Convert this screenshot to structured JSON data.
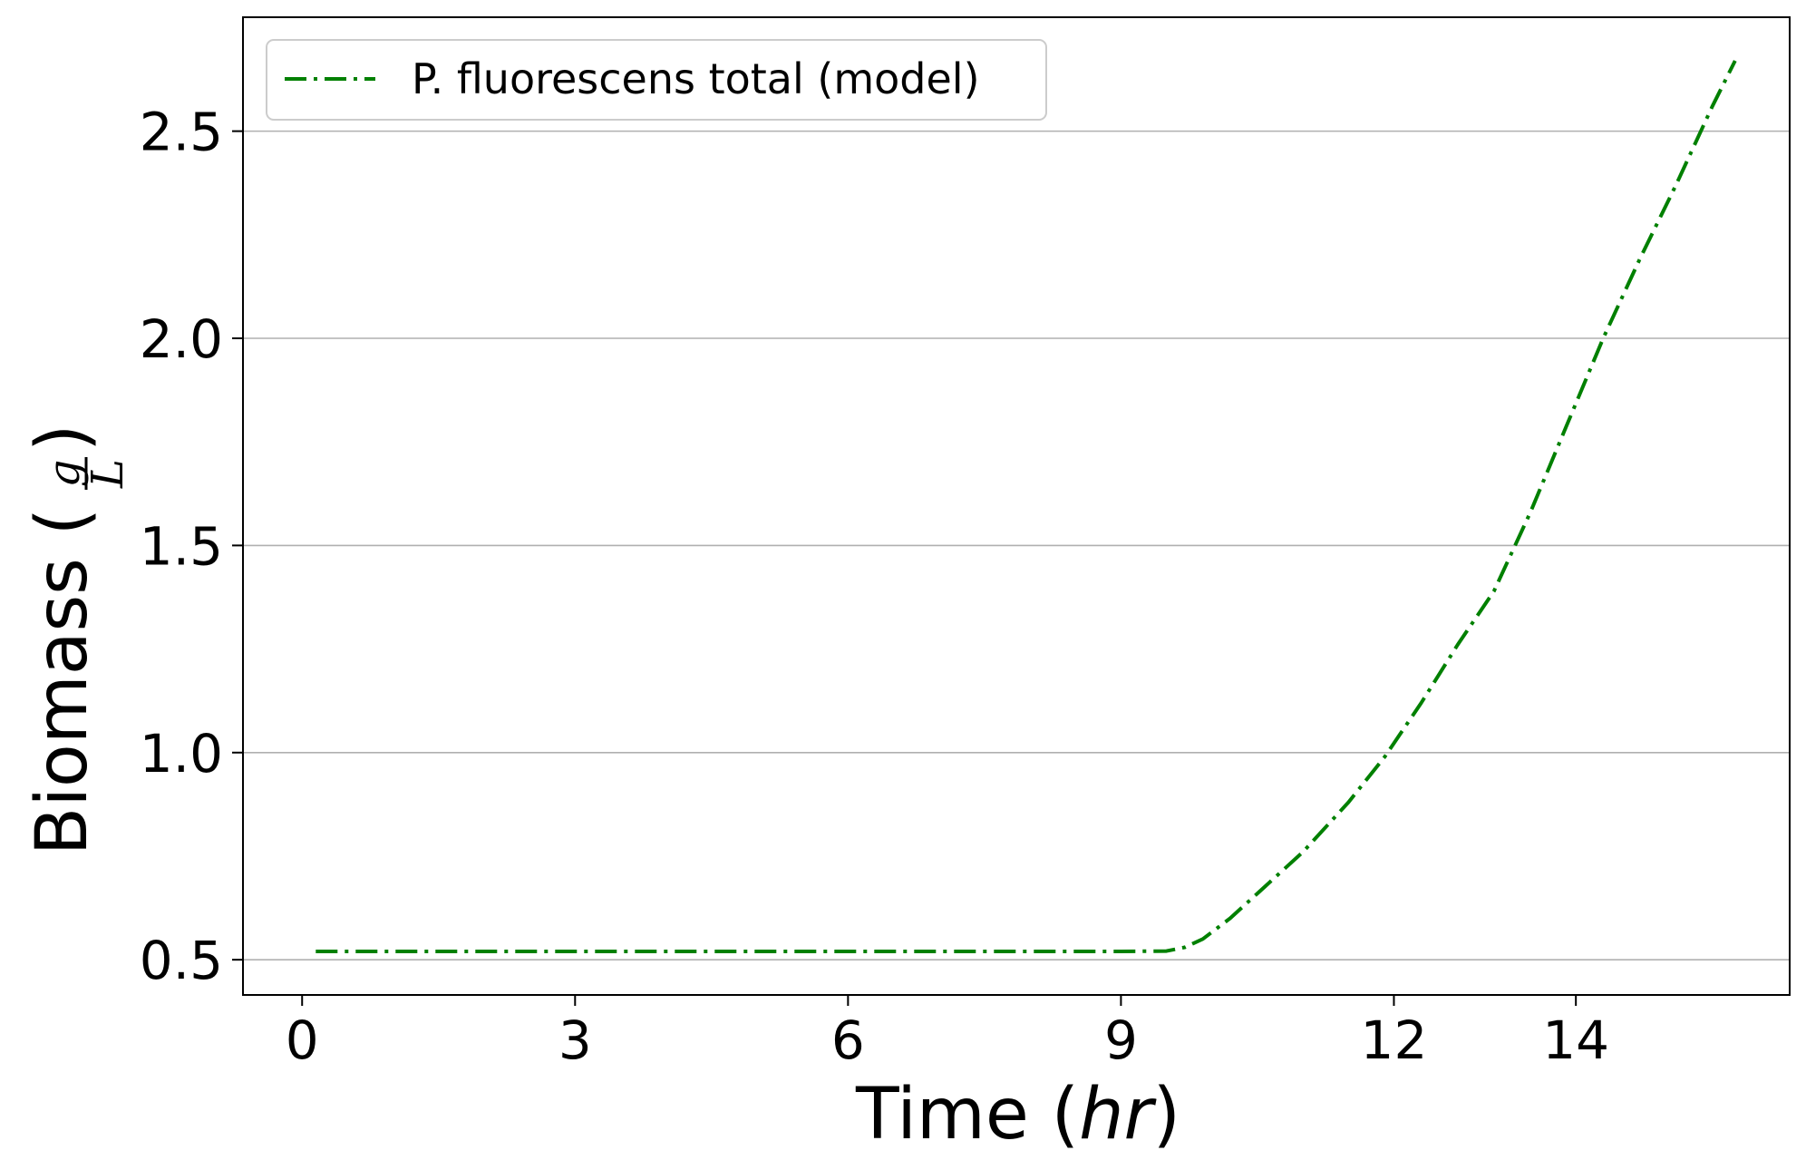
{
  "chart_data": {
    "type": "line",
    "xlabel_text": "Time (",
    "xlabel_italic": "hr",
    "xlabel_close": ")",
    "ylabel_text": "Biomass (",
    "ylabel_num": "g",
    "ylabel_den": "L",
    "ylabel_close": ")",
    "xlim": [
      -0.65,
      16.35
    ],
    "ylim": [
      0.415,
      2.775
    ],
    "xticks": [
      0,
      3,
      6,
      9,
      12,
      14
    ],
    "xtick_labels": [
      "0",
      "3",
      "6",
      "9",
      "12",
      "14"
    ],
    "yticks": [
      0.5,
      1.0,
      1.5,
      2.0,
      2.5
    ],
    "ytick_labels": [
      "0.5",
      "1.0",
      "1.5",
      "2.0",
      "2.5"
    ],
    "grid": "horizontal",
    "legend_placement": "top-left",
    "series": [
      {
        "name": "P. fluorescens total (model)",
        "color": "#008000",
        "linestyle": "dash-dot",
        "x": [
          0.15,
          1,
          2,
          3,
          4,
          5,
          6,
          7,
          8,
          9,
          9.5,
          9.7,
          9.9,
          10.2,
          10.5,
          11.0,
          11.5,
          11.9,
          12.3,
          12.7,
          13.1,
          13.5,
          13.9,
          14.3,
          14.7,
          15.1,
          15.5,
          15.75
        ],
        "y": [
          0.52,
          0.52,
          0.52,
          0.52,
          0.52,
          0.52,
          0.52,
          0.52,
          0.52,
          0.52,
          0.521,
          0.53,
          0.55,
          0.6,
          0.66,
          0.76,
          0.88,
          0.99,
          1.12,
          1.26,
          1.39,
          1.58,
          1.79,
          2.0,
          2.19,
          2.37,
          2.56,
          2.67
        ]
      }
    ]
  }
}
